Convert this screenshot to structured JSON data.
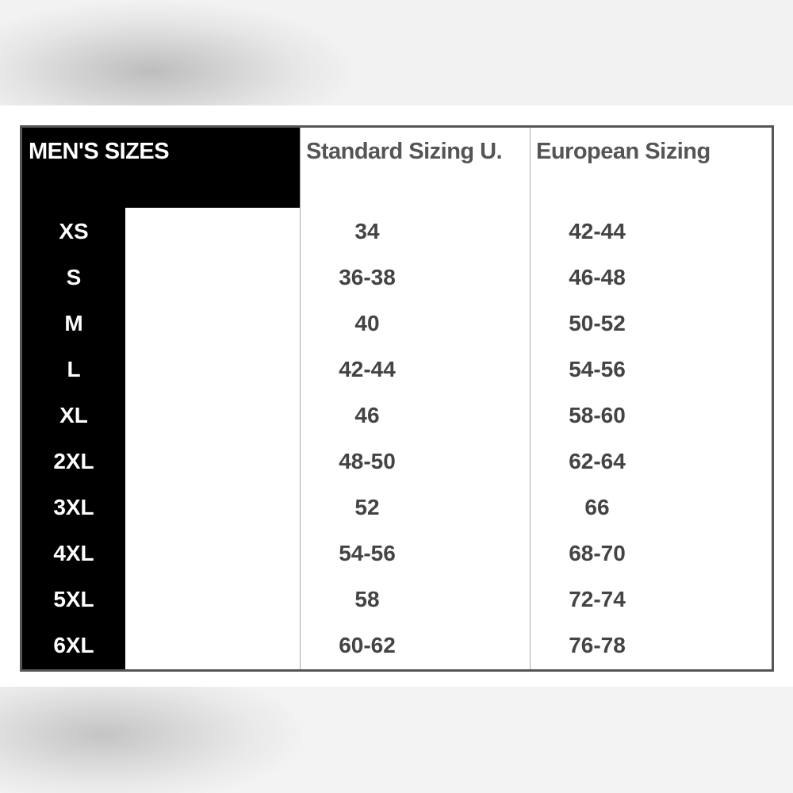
{
  "table": {
    "title": "MEN'S SIZES",
    "headers": [
      "Standard Sizing U.",
      "European Sizing"
    ],
    "rows": [
      {
        "size": "XS",
        "standard": "34",
        "european": "42-44"
      },
      {
        "size": "S",
        "standard": "36-38",
        "european": "46-48"
      },
      {
        "size": "M",
        "standard": "40",
        "european": "50-52"
      },
      {
        "size": "L",
        "standard": "42-44",
        "european": "54-56"
      },
      {
        "size": "XL",
        "standard": "46",
        "european": "58-60"
      },
      {
        "size": "2XL",
        "standard": "48-50",
        "european": "62-64"
      },
      {
        "size": "3XL",
        "standard": "52",
        "european": "66"
      },
      {
        "size": "4XL",
        "standard": "54-56",
        "european": "68-70"
      },
      {
        "size": "5XL",
        "standard": "58",
        "european": "72-74"
      },
      {
        "size": "6XL",
        "standard": "60-62",
        "european": "76-78"
      }
    ]
  }
}
